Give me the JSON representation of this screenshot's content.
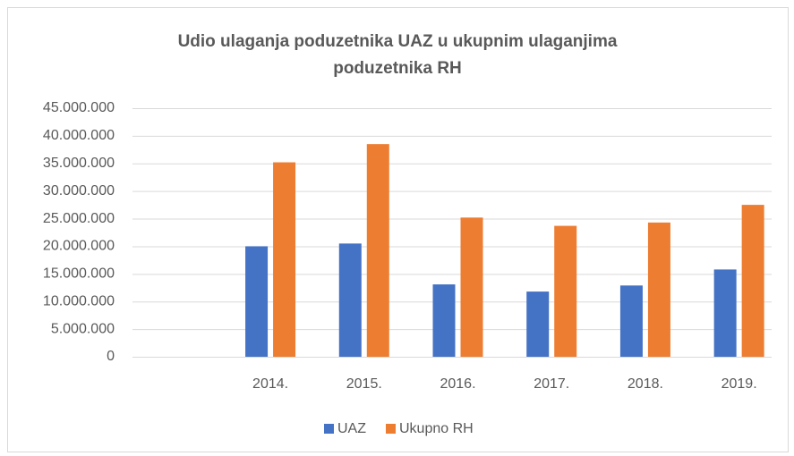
{
  "chart_data": {
    "type": "bar",
    "title": [
      "Udio ulaganja poduzetnika UAZ u ukupnim ulaganjima",
      "poduzetnika RH"
    ],
    "categories": [
      null,
      "2014.",
      "2015.",
      "2016.",
      "2017.",
      "2018.",
      "2019."
    ],
    "series": [
      {
        "name": "UAZ",
        "color": "#4472c4",
        "values": [
          null,
          20000000,
          20500000,
          13100000,
          11800000,
          12900000,
          15800000
        ]
      },
      {
        "name": "Ukupno RH",
        "color": "#ed7d31",
        "values": [
          null,
          35200000,
          38500000,
          25200000,
          23700000,
          24300000,
          27500000
        ]
      }
    ],
    "ylim": [
      0,
      45000000
    ],
    "yticks": [
      0,
      {
        "value": 5000000,
        "label": "5.000.000"
      },
      {
        "value": 10000000,
        "label": "10.000.000"
      },
      {
        "value": 15000000,
        "label": "15.000.000"
      },
      {
        "value": 20000000,
        "label": "20.000.000"
      },
      {
        "value": 25000000,
        "label": "25.000.000"
      },
      {
        "value": 30000000,
        "label": "30.000.000"
      },
      {
        "value": 35000000,
        "label": "35.000.000"
      },
      {
        "value": 40000000,
        "label": "40.000.000"
      },
      {
        "value": 45000000,
        "label": "45.000.000"
      }
    ],
    "grid": true,
    "legend": "bottom"
  }
}
